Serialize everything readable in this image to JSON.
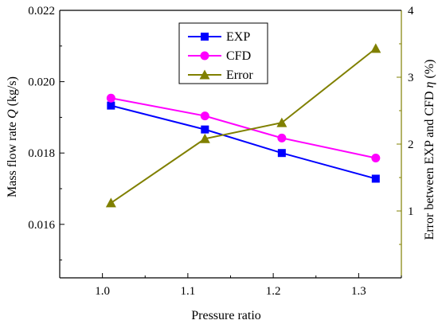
{
  "chart_data": {
    "type": "line",
    "x": [
      1.01,
      1.12,
      1.21,
      1.32
    ],
    "xlabel": "Pressure ratio",
    "xlim": [
      0.95,
      1.35
    ],
    "xticks": [
      "1.0",
      "1.1",
      "1.2",
      "1.3"
    ],
    "ylabel_left_parts": [
      "Mass flow rate ",
      "Q",
      " (kg/s)"
    ],
    "ylim_left": [
      0.0145,
      0.022
    ],
    "yticks_left": [
      "0.016",
      "0.018",
      "0.020",
      "0.022"
    ],
    "ylabel_right_parts": [
      "Error between EXP and CFD ",
      "η",
      " (%)"
    ],
    "ylim_right": [
      0,
      4
    ],
    "yticks_right": [
      "1",
      "2",
      "3",
      "4"
    ],
    "series": [
      {
        "name": "EXP",
        "axis": "left",
        "marker": "square",
        "color": "#0000ff",
        "values": [
          0.01933,
          0.01866,
          0.018,
          0.01728
        ]
      },
      {
        "name": "CFD",
        "axis": "left",
        "marker": "circle",
        "color": "#ff00ff",
        "values": [
          0.01954,
          0.01904,
          0.01842,
          0.01786
        ]
      },
      {
        "name": "Error",
        "axis": "right",
        "marker": "triangle",
        "color": "#808000",
        "values": [
          1.12,
          2.08,
          2.32,
          3.43
        ]
      }
    ],
    "legend_position": "top-center",
    "grid": false,
    "right_axis_color": "#808000"
  }
}
